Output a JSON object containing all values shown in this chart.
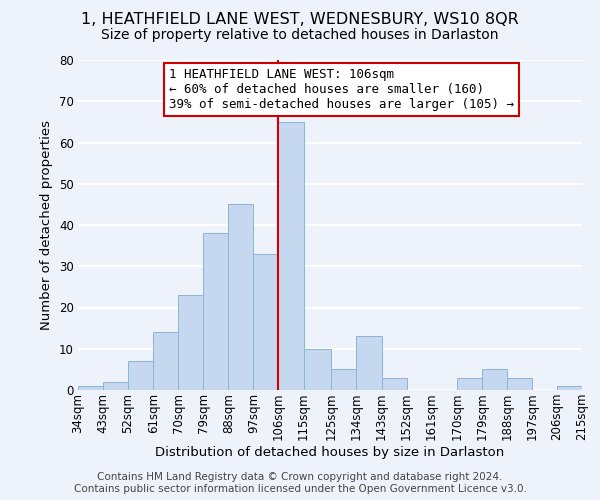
{
  "title": "1, HEATHFIELD LANE WEST, WEDNESBURY, WS10 8QR",
  "subtitle": "Size of property relative to detached houses in Darlaston",
  "xlabel": "Distribution of detached houses by size in Darlaston",
  "ylabel": "Number of detached properties",
  "bins": [
    "34sqm",
    "43sqm",
    "52sqm",
    "61sqm",
    "70sqm",
    "79sqm",
    "88sqm",
    "97sqm",
    "106sqm",
    "115sqm",
    "125sqm",
    "134sqm",
    "143sqm",
    "152sqm",
    "161sqm",
    "170sqm",
    "179sqm",
    "188sqm",
    "197sqm",
    "206sqm",
    "215sqm"
  ],
  "bin_edges": [
    34,
    43,
    52,
    61,
    70,
    79,
    88,
    97,
    106,
    115,
    125,
    134,
    143,
    152,
    161,
    170,
    179,
    188,
    197,
    206,
    215
  ],
  "values": [
    1,
    2,
    7,
    14,
    23,
    38,
    45,
    33,
    65,
    10,
    5,
    13,
    3,
    0,
    0,
    3,
    5,
    3,
    0,
    1
  ],
  "bar_color": "#c5d8f0",
  "bar_edge_color": "#8ab4d8",
  "highlight_bar_index": 8,
  "highlight_line_color": "#cc0000",
  "vline_x": 106,
  "ylim": [
    0,
    80
  ],
  "yticks": [
    0,
    10,
    20,
    30,
    40,
    50,
    60,
    70,
    80
  ],
  "annotation_box_text": "1 HEATHFIELD LANE WEST: 106sqm\n← 60% of detached houses are smaller (160)\n39% of semi-detached houses are larger (105) →",
  "annotation_box_color": "#ffffff",
  "annotation_box_edge_color": "#cc0000",
  "footer1": "Contains HM Land Registry data © Crown copyright and database right 2024.",
  "footer2": "Contains public sector information licensed under the Open Government Licence v3.0.",
  "bg_color": "#eef3fb",
  "grid_color": "#ffffff",
  "title_fontsize": 11.5,
  "subtitle_fontsize": 10,
  "axis_label_fontsize": 9.5,
  "tick_fontsize": 8.5,
  "annotation_fontsize": 9,
  "footer_fontsize": 7.5
}
